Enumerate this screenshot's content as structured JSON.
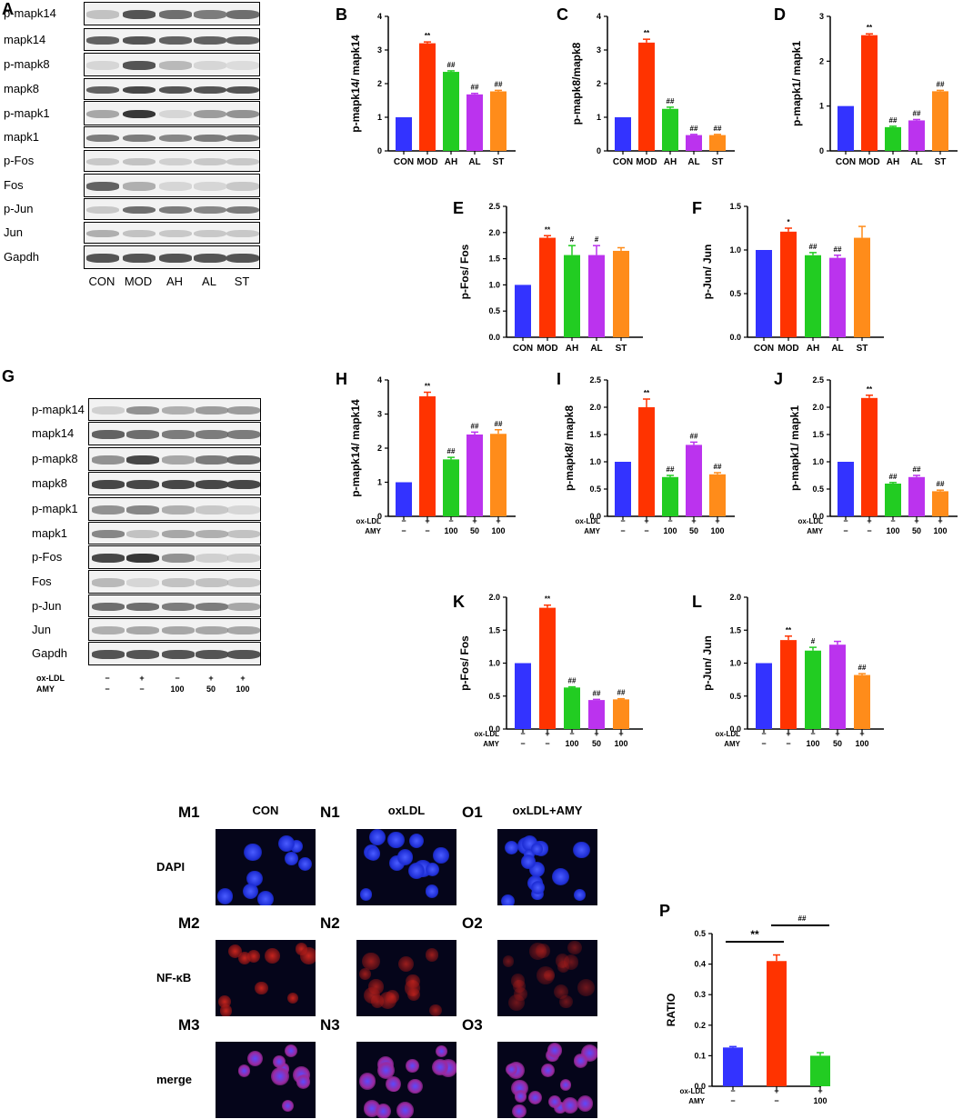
{
  "panels": {
    "A": "A",
    "B": "B",
    "C": "C",
    "D": "D",
    "E": "E",
    "F": "F",
    "G": "G",
    "H": "H",
    "I": "I",
    "J": "J",
    "K": "K",
    "L": "L",
    "P": "P"
  },
  "blotA": {
    "rows": [
      "p-mapk14",
      "mapk14",
      "p-mapk8",
      "mapk8",
      "p-mapk1",
      "mapk1",
      "p-Fos",
      "Fos",
      "p-Jun",
      "Jun",
      "Gapdh"
    ],
    "lanes": [
      "CON",
      "MOD",
      "AH",
      "AL",
      "ST"
    ]
  },
  "blotG": {
    "rows": [
      "p-mapk14",
      "mapk14",
      "p-mapk8",
      "mapk8",
      "p-mapk1",
      "mapk1",
      "p-Fos",
      "Fos",
      "p-Jun",
      "Jun",
      "Gapdh"
    ],
    "treat_rows": [
      {
        "label": "ox-LDL",
        "values": [
          "−",
          "+",
          "−",
          "+",
          "+"
        ]
      },
      {
        "label": "AMY",
        "values": [
          "−",
          "−",
          "100",
          "50",
          "100"
        ]
      }
    ]
  },
  "colors": {
    "c1": "#3333ff",
    "c2": "#ff3300",
    "c3": "#22cc22",
    "c4": "#bb33ee",
    "c5": "#ff8c1a"
  },
  "chart_data": [
    {
      "id": "B",
      "type": "bar",
      "categories": [
        "CON",
        "MOD",
        "AH",
        "AL",
        "ST"
      ],
      "values": [
        1.0,
        3.2,
        2.35,
        1.68,
        1.77
      ],
      "errors": [
        0,
        0.04,
        0.03,
        0.03,
        0.03
      ],
      "sig": [
        "",
        "**",
        "##",
        "##",
        "##"
      ],
      "ylabel": "p-mapk14/ mapk14",
      "ylim": [
        0,
        4
      ],
      "yticks": [
        0,
        1,
        2,
        3,
        4
      ]
    },
    {
      "id": "C",
      "type": "bar",
      "categories": [
        "CON",
        "MOD",
        "AH",
        "AL",
        "ST"
      ],
      "values": [
        1.0,
        3.22,
        1.25,
        0.47,
        0.47
      ],
      "errors": [
        0,
        0.1,
        0.05,
        0.02,
        0.02
      ],
      "sig": [
        "",
        "**",
        "##",
        "##",
        "##"
      ],
      "ylabel": "p-mapk8/mapk8",
      "ylim": [
        0,
        4
      ],
      "yticks": [
        0,
        1,
        2,
        3,
        4
      ]
    },
    {
      "id": "D",
      "type": "bar",
      "categories": [
        "CON",
        "MOD",
        "AH",
        "AL",
        "ST"
      ],
      "values": [
        1.0,
        2.58,
        0.53,
        0.68,
        1.33
      ],
      "errors": [
        0,
        0.03,
        0.02,
        0.02,
        0.02
      ],
      "sig": [
        "",
        "**",
        "##",
        "##",
        "##"
      ],
      "ylabel": "p-mapk1/ mapk1",
      "ylim": [
        0,
        3
      ],
      "yticks": [
        0,
        1,
        2,
        3
      ]
    },
    {
      "id": "E",
      "type": "bar",
      "categories": [
        "CON",
        "MOD",
        "AH",
        "AL",
        "ST"
      ],
      "values": [
        1.0,
        1.9,
        1.57,
        1.57,
        1.65
      ],
      "errors": [
        0,
        0.04,
        0.18,
        0.18,
        0.06
      ],
      "sig": [
        "",
        "**",
        "#",
        "#",
        ""
      ],
      "ylabel": "p-Fos/ Fos",
      "ylim": [
        0,
        2.5
      ],
      "yticks": [
        0.0,
        0.5,
        1.0,
        1.5,
        2.0,
        2.5
      ]
    },
    {
      "id": "F",
      "type": "bar",
      "categories": [
        "CON",
        "MOD",
        "AH",
        "AL",
        "ST"
      ],
      "values": [
        1.0,
        1.21,
        0.94,
        0.91,
        1.14
      ],
      "errors": [
        0,
        0.04,
        0.03,
        0.03,
        0.13
      ],
      "sig": [
        "",
        "*",
        "##",
        "##",
        ""
      ],
      "ylabel": "p-Jun/ Jun",
      "ylim": [
        0,
        1.5
      ],
      "yticks": [
        0.0,
        0.5,
        1.0,
        1.5
      ]
    },
    {
      "id": "H",
      "type": "bar",
      "categories": [
        "1",
        "2",
        "3",
        "4",
        "5"
      ],
      "values": [
        1.0,
        3.52,
        1.67,
        2.4,
        2.42
      ],
      "errors": [
        0,
        0.12,
        0.06,
        0.07,
        0.12
      ],
      "sig": [
        "",
        "**",
        "##",
        "##",
        "##"
      ],
      "ylabel": "p-mapk14/ mapk14",
      "ylim": [
        0,
        4
      ],
      "yticks": [
        0,
        1,
        2,
        3,
        4
      ],
      "treat": [
        [
          "−",
          "+",
          "−",
          "+",
          "+"
        ],
        [
          "−",
          "−",
          "100",
          "50",
          "100"
        ]
      ]
    },
    {
      "id": "I",
      "type": "bar",
      "categories": [
        "1",
        "2",
        "3",
        "4",
        "5"
      ],
      "values": [
        1.0,
        2.0,
        0.72,
        1.31,
        0.77
      ],
      "errors": [
        0,
        0.15,
        0.03,
        0.05,
        0.03
      ],
      "sig": [
        "",
        "**",
        "##",
        "##",
        "##"
      ],
      "ylabel": "p-mapk8/ mapk8",
      "ylim": [
        0,
        2.5
      ],
      "yticks": [
        0.0,
        0.5,
        1.0,
        1.5,
        2.0,
        2.5
      ],
      "treat": [
        [
          "−",
          "+",
          "−",
          "+",
          "+"
        ],
        [
          "−",
          "−",
          "100",
          "50",
          "100"
        ]
      ]
    },
    {
      "id": "J",
      "type": "bar",
      "categories": [
        "1",
        "2",
        "3",
        "4",
        "5"
      ],
      "values": [
        1.0,
        2.17,
        0.6,
        0.72,
        0.46
      ],
      "errors": [
        0,
        0.05,
        0.02,
        0.03,
        0.02
      ],
      "sig": [
        "",
        "**",
        "##",
        "##",
        "##"
      ],
      "ylabel": "p-mapk1/ mapk1",
      "ylim": [
        0,
        2.5
      ],
      "yticks": [
        0.0,
        0.5,
        1.0,
        1.5,
        2.0,
        2.5
      ],
      "treat": [
        [
          "−",
          "+",
          "−",
          "+",
          "+"
        ],
        [
          "−",
          "−",
          "100",
          "50",
          "100"
        ]
      ]
    },
    {
      "id": "K",
      "type": "bar",
      "categories": [
        "1",
        "2",
        "3",
        "4",
        "5"
      ],
      "values": [
        1.0,
        1.84,
        0.63,
        0.44,
        0.45
      ],
      "errors": [
        0,
        0.04,
        0.01,
        0.01,
        0.01
      ],
      "sig": [
        "",
        "**",
        "##",
        "##",
        "##"
      ],
      "ylabel": "p-Fos/ Fos",
      "ylim": [
        0,
        2.0
      ],
      "yticks": [
        0.0,
        0.5,
        1.0,
        1.5,
        2.0
      ],
      "treat": [
        [
          "−",
          "+",
          "−",
          "+",
          "+"
        ],
        [
          "−",
          "−",
          "100",
          "50",
          "100"
        ]
      ]
    },
    {
      "id": "L",
      "type": "bar",
      "categories": [
        "1",
        "2",
        "3",
        "4",
        "5"
      ],
      "values": [
        1.0,
        1.35,
        1.19,
        1.28,
        0.82
      ],
      "errors": [
        0,
        0.06,
        0.05,
        0.05,
        0.02
      ],
      "sig": [
        "",
        "**",
        "#",
        "",
        "##"
      ],
      "ylabel": "p-Jun/ Jun",
      "ylim": [
        0,
        2.0
      ],
      "yticks": [
        0.0,
        0.5,
        1.0,
        1.5,
        2.0
      ],
      "treat": [
        [
          "−",
          "+",
          "−",
          "+",
          "+"
        ],
        [
          "−",
          "−",
          "100",
          "50",
          "100"
        ]
      ]
    },
    {
      "id": "P",
      "type": "bar",
      "categories": [
        "1",
        "2",
        "3"
      ],
      "values": [
        0.127,
        0.41,
        0.1
      ],
      "errors": [
        0.003,
        0.02,
        0.01
      ],
      "sig": [
        "",
        "",
        ""
      ],
      "ylabel": "RATIO",
      "ylim": [
        0,
        0.5
      ],
      "yticks": [
        0.0,
        0.1,
        0.2,
        0.3,
        0.4,
        0.5
      ],
      "treat": [
        [
          "−",
          "+",
          "+"
        ],
        [
          "−",
          "−",
          "100"
        ]
      ],
      "brackets": [
        {
          "label": "**"
        },
        {
          "label": "##"
        }
      ]
    }
  ],
  "treat_labels": [
    "ox-LDL",
    "AMY"
  ],
  "microscopy": {
    "columns": [
      "CON",
      "oxLDL",
      "oxLDL+AMY"
    ],
    "rows": [
      "DAPI",
      "NF-κB",
      "merge"
    ],
    "codes": [
      [
        "M1",
        "N1",
        "O1"
      ],
      [
        "M2",
        "N2",
        "O2"
      ],
      [
        "M3",
        "N3",
        "O3"
      ]
    ]
  }
}
